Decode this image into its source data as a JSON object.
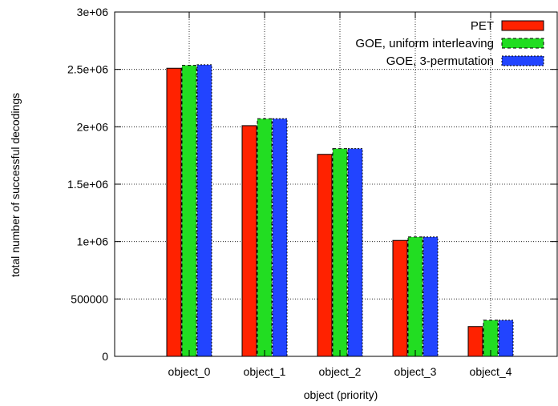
{
  "chart_data": {
    "type": "bar",
    "title": "",
    "xlabel": "object (priority)",
    "ylabel": "total number of successful decodings",
    "categories": [
      "object_0",
      "object_1",
      "object_2",
      "object_3",
      "object_4"
    ],
    "ylim": [
      0,
      3000000
    ],
    "yticks": [
      0,
      500000,
      1000000,
      1500000,
      2000000,
      2500000,
      3000000
    ],
    "ytick_labels": [
      "0",
      "500000",
      "1e+06",
      "1.5e+06",
      "2e+06",
      "2.5e+06",
      "3e+06"
    ],
    "grid": true,
    "legend_position": "top-right",
    "series": [
      {
        "name": "PET",
        "color": "#ff2200",
        "pattern": "solid",
        "values": [
          2510000,
          2010000,
          1760000,
          1010000,
          260000
        ]
      },
      {
        "name": "GOE, uniform interleaving",
        "color": "#22dd22",
        "pattern": "dashed",
        "values": [
          2535000,
          2070000,
          1810000,
          1040000,
          315000
        ]
      },
      {
        "name": "GOE, 3-permutation",
        "color": "#2244ff",
        "pattern": "dotted",
        "values": [
          2540000,
          2070000,
          1810000,
          1040000,
          315000
        ]
      }
    ]
  }
}
